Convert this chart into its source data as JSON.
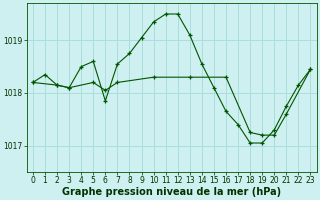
{
  "title": "Graphe pression niveau de la mer (hPa)",
  "bg_color": "#cef0f0",
  "grid_color": "#aadddd",
  "line_color": "#005500",
  "xlim": [
    -0.5,
    23.5
  ],
  "ylim": [
    1016.5,
    1019.7
  ],
  "yticks": [
    1017,
    1018,
    1019
  ],
  "xticks": [
    0,
    1,
    2,
    3,
    4,
    5,
    6,
    7,
    8,
    9,
    10,
    11,
    12,
    13,
    14,
    15,
    16,
    17,
    18,
    19,
    20,
    21,
    22,
    23
  ],
  "series1_x": [
    0,
    1,
    2,
    3,
    4,
    5,
    6,
    7,
    8,
    9,
    10,
    11,
    12,
    13,
    14,
    15,
    16,
    17,
    18,
    19,
    20,
    21,
    22,
    23
  ],
  "series1_y": [
    1018.2,
    1018.35,
    1018.15,
    1018.1,
    1018.5,
    1018.6,
    1017.85,
    1018.55,
    1018.75,
    1019.05,
    1019.35,
    1019.5,
    1019.5,
    1019.1,
    1018.55,
    1018.1,
    1017.65,
    1017.4,
    1017.05,
    1017.05,
    1017.3,
    1017.75,
    1018.15,
    1018.45
  ],
  "series2_x": [
    0,
    2,
    3,
    5,
    6,
    7,
    10,
    13,
    16,
    18,
    19,
    20,
    21,
    23
  ],
  "series2_y": [
    1018.2,
    1018.15,
    1018.1,
    1018.2,
    1018.05,
    1018.2,
    1018.3,
    1018.3,
    1018.3,
    1017.25,
    1017.2,
    1017.2,
    1017.6,
    1018.45
  ],
  "title_fontsize": 7,
  "tick_fontsize": 5.5
}
